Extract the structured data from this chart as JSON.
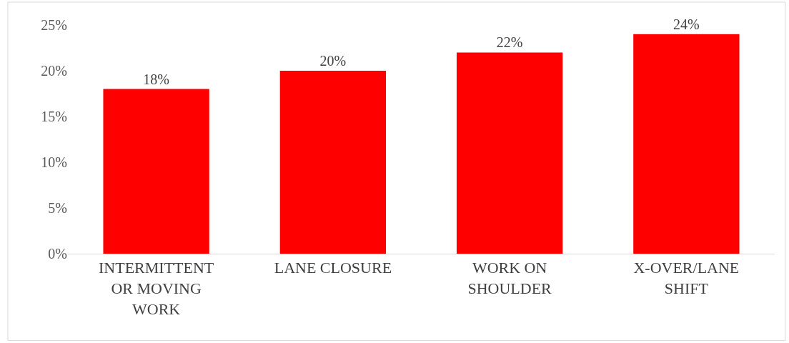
{
  "chart_data": {
    "type": "bar",
    "categories": [
      "INTERMITTENT OR MOVING WORK",
      "LANE CLOSURE",
      "WORK ON SHOULDER",
      "X-OVER/LANE SHIFT"
    ],
    "values": [
      18,
      20,
      22,
      24
    ],
    "color": "#ff0000",
    "data_labels": true,
    "value_labels": [
      "18%",
      "20%",
      "22%",
      "24%"
    ],
    "ylim": [
      0,
      25
    ],
    "yticks": [
      {
        "value": 0,
        "label": "0%"
      },
      {
        "value": 5,
        "label": "5%"
      },
      {
        "value": 10,
        "label": "10%"
      },
      {
        "value": 15,
        "label": "15%"
      },
      {
        "value": 20,
        "label": "20%"
      },
      {
        "value": 25,
        "label": "25%"
      }
    ],
    "legend": false
  }
}
